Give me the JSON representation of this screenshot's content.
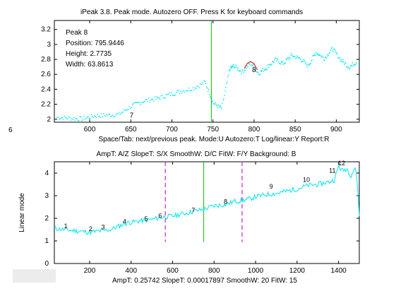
{
  "window_title": "iPeak 3.8.  Peak mode.  Autozero OFF.  Press K for keyboard commands",
  "top_plot": {
    "info_lines": [
      "Peak 8",
      "Position: 795.9446",
      "Height: 2.7735",
      "Width: 63.8613"
    ],
    "x_ticks": [
      "600",
      "650",
      "700",
      "750",
      "800",
      "850",
      "900"
    ],
    "y_ticks": [
      "2",
      "2.2",
      "2.4",
      "2.6",
      "2.8",
      "3",
      "3.2"
    ],
    "xlabel": "Space/Tab: next/previous peak. Mode:U  Autozero:T  Log/linear:Y  Report:R",
    "peak_labels": [
      "7",
      "8"
    ],
    "left_marker": "6"
  },
  "bottom_plot": {
    "title": "AmpT: A/Z  SlopeT: S/X  SmoothW: D/C  FitW: F/Y  Background: B",
    "ylabel": "Linear mode",
    "x_ticks": [
      "200",
      "400",
      "600",
      "800",
      "1000",
      "1200",
      "1400"
    ],
    "y_ticks": [
      "0",
      "1",
      "2",
      "3",
      "4"
    ],
    "status": "AmpT: 0.25742   SlopeT: 0.00017897   SmoothW: 20   FitW: 15",
    "peak_labels": [
      "1",
      "2",
      "3",
      "4",
      "5",
      "6",
      "7",
      "8",
      "9",
      "10",
      "11",
      "12"
    ]
  },
  "colors": {
    "signal": "#00e5ee",
    "cursor": "#00c000",
    "window_bounds": "#cc33cc",
    "fit": "#e00000"
  },
  "chart_data": [
    {
      "type": "scatter",
      "title": "",
      "xlim": [
        557,
        928
      ],
      "ylim": [
        1.96,
        3.32
      ],
      "cursor_x": 748,
      "series": [
        {
          "x": [
            560,
            575,
            590,
            605,
            620,
            635,
            650,
            665,
            680,
            695,
            710,
            725,
            740,
            750,
            760,
            770,
            775,
            785,
            795,
            805,
            815,
            825,
            835,
            845,
            855,
            865,
            875,
            885,
            895,
            905,
            915,
            925
          ],
          "values": [
            2.03,
            2.02,
            2.01,
            2.05,
            2.06,
            2.07,
            2.18,
            2.25,
            2.28,
            2.33,
            2.38,
            2.42,
            2.5,
            2.22,
            2.15,
            2.68,
            2.72,
            2.64,
            2.76,
            2.62,
            2.7,
            2.8,
            2.75,
            2.86,
            2.82,
            2.72,
            2.9,
            2.82,
            2.95,
            2.8,
            2.7,
            2.78
          ]
        }
      ],
      "fit": {
        "x": [
          788,
          792,
          796,
          800,
          804
        ],
        "values": [
          2.68,
          2.75,
          2.77,
          2.74,
          2.66
        ]
      },
      "peaks": [
        {
          "label": "7",
          "x": 651,
          "y": 2.02
        },
        {
          "label": "8",
          "x": 800,
          "y": 2.63
        }
      ]
    },
    {
      "type": "line",
      "title": "",
      "xlim": [
        30,
        1500
      ],
      "ylim": [
        0,
        4.5
      ],
      "cursor_x": 750,
      "window": [
        565,
        935
      ],
      "series": [
        {
          "x": [
            30,
            80,
            130,
            200,
            260,
            300,
            340,
            380,
            420,
            460,
            500,
            550,
            600,
            650,
            700,
            750,
            800,
            850,
            900,
            950,
            1000,
            1050,
            1100,
            1150,
            1200,
            1250,
            1300,
            1350,
            1380,
            1400,
            1420,
            1440,
            1460,
            1480,
            1490,
            1500
          ],
          "values": [
            1.55,
            1.5,
            1.45,
            1.38,
            1.45,
            1.5,
            1.65,
            1.8,
            1.85,
            1.9,
            1.95,
            2.05,
            2.1,
            2.2,
            2.3,
            2.4,
            2.55,
            2.6,
            2.75,
            2.8,
            2.95,
            3.05,
            3.1,
            3.2,
            3.3,
            3.45,
            3.5,
            3.6,
            3.7,
            4.3,
            4.1,
            4.2,
            3.9,
            4.25,
            3.6,
            2.1
          ]
        }
      ],
      "peaks": [
        {
          "label": "1",
          "x": 85,
          "y": 1.5
        },
        {
          "label": "2",
          "x": 205,
          "y": 1.38
        },
        {
          "label": "3",
          "x": 265,
          "y": 1.45
        },
        {
          "label": "4",
          "x": 368,
          "y": 1.7
        },
        {
          "label": "5",
          "x": 472,
          "y": 1.82
        },
        {
          "label": "6",
          "x": 540,
          "y": 1.95
        },
        {
          "label": "7",
          "x": 700,
          "y": 2.2
        },
        {
          "label": "8",
          "x": 855,
          "y": 2.58
        },
        {
          "label": "9",
          "x": 1075,
          "y": 3.25
        },
        {
          "label": "10",
          "x": 1245,
          "y": 3.55
        },
        {
          "label": "11",
          "x": 1370,
          "y": 3.95
        },
        {
          "label": "12",
          "x": 1415,
          "y": 4.28
        }
      ]
    }
  ]
}
